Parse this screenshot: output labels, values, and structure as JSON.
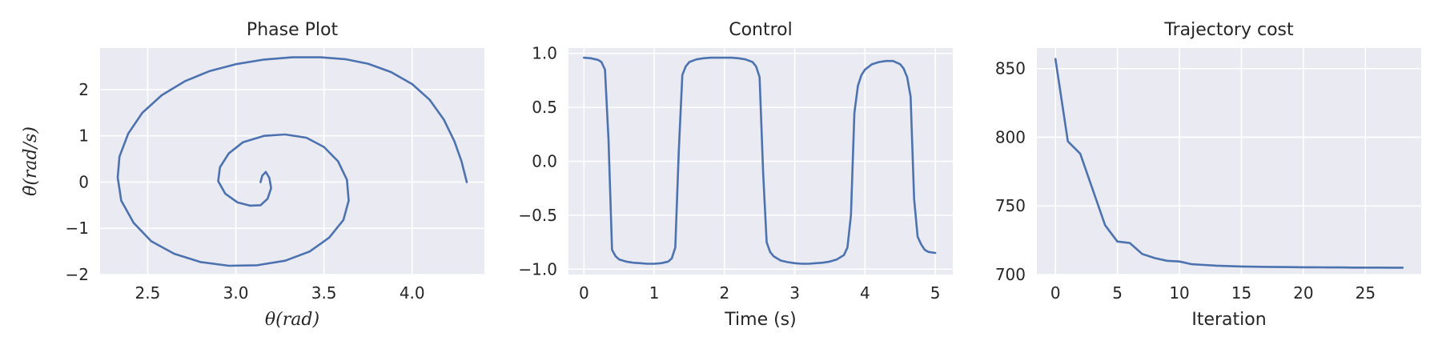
{
  "chart_data": [
    {
      "type": "line",
      "title": "Phase Plot",
      "xlabel": "θ(rad)",
      "ylabel": "θ̇(rad/s)",
      "xlim": [
        2.23,
        4.41
      ],
      "ylim": [
        -2.0,
        2.9
      ],
      "xticks": [
        2.5,
        3.0,
        3.5,
        4.0
      ],
      "xtick_labels": [
        "2.5",
        "3.0",
        "3.5",
        "4.0"
      ],
      "yticks": [
        -2,
        -1,
        0,
        1,
        2
      ],
      "ytick_labels": [
        "−2",
        "−1",
        "0",
        "1",
        "2"
      ],
      "grid": true,
      "series": [
        {
          "x": [
            4.31,
            4.28,
            4.24,
            4.18,
            4.1,
            4.0,
            3.88,
            3.75,
            3.62,
            3.48,
            3.32,
            3.16,
            3.0,
            2.85,
            2.71,
            2.58,
            2.47,
            2.39,
            2.34,
            2.33,
            2.35,
            2.42,
            2.52,
            2.65,
            2.8,
            2.96,
            3.12,
            3.28,
            3.42,
            3.53,
            3.61,
            3.64,
            3.63,
            3.58,
            3.5,
            3.4,
            3.28,
            3.16,
            3.04,
            2.96,
            2.91,
            2.9,
            2.94,
            3.01,
            3.08,
            3.14,
            3.18,
            3.2,
            3.19,
            3.17,
            3.15,
            3.14
          ],
          "y": [
            0.0,
            0.45,
            0.88,
            1.35,
            1.78,
            2.12,
            2.38,
            2.56,
            2.66,
            2.7,
            2.7,
            2.65,
            2.55,
            2.4,
            2.18,
            1.88,
            1.5,
            1.05,
            0.55,
            0.1,
            -0.4,
            -0.88,
            -1.28,
            -1.55,
            -1.73,
            -1.81,
            -1.8,
            -1.7,
            -1.5,
            -1.2,
            -0.82,
            -0.4,
            0.05,
            0.45,
            0.76,
            0.96,
            1.03,
            1.0,
            0.86,
            0.62,
            0.32,
            0.02,
            -0.25,
            -0.44,
            -0.51,
            -0.5,
            -0.36,
            -0.13,
            0.09,
            0.22,
            0.14,
            0.0
          ]
        }
      ]
    },
    {
      "type": "line",
      "title": "Control",
      "xlabel": "Time (s)",
      "ylabel": "",
      "xlim": [
        -0.22,
        5.25
      ],
      "ylim": [
        -1.05,
        1.05
      ],
      "xticks": [
        0,
        1,
        2,
        3,
        4,
        5
      ],
      "xtick_labels": [
        "0",
        "1",
        "2",
        "3",
        "4",
        "5"
      ],
      "yticks": [
        -1.0,
        -0.5,
        0.0,
        0.5,
        1.0
      ],
      "ytick_labels": [
        "−1.0",
        "−0.5",
        "0.0",
        "0.5",
        "1.0"
      ],
      "grid": true,
      "series": [
        {
          "x": [
            0.0,
            0.1,
            0.2,
            0.25,
            0.3,
            0.35,
            0.4,
            0.45,
            0.5,
            0.6,
            0.7,
            0.8,
            0.9,
            1.0,
            1.1,
            1.2,
            1.25,
            1.3,
            1.35,
            1.4,
            1.45,
            1.5,
            1.6,
            1.7,
            1.8,
            1.9,
            2.0,
            2.1,
            2.2,
            2.3,
            2.4,
            2.45,
            2.5,
            2.55,
            2.6,
            2.65,
            2.7,
            2.8,
            2.9,
            3.0,
            3.1,
            3.2,
            3.3,
            3.4,
            3.5,
            3.6,
            3.7,
            3.75,
            3.8,
            3.85,
            3.9,
            3.95,
            4.0,
            4.1,
            4.2,
            4.3,
            4.4,
            4.5,
            4.55,
            4.6,
            4.65,
            4.7,
            4.75,
            4.8,
            4.85,
            4.9,
            5.0
          ],
          "y": [
            0.96,
            0.955,
            0.94,
            0.92,
            0.85,
            0.2,
            -0.82,
            -0.88,
            -0.91,
            -0.93,
            -0.94,
            -0.945,
            -0.95,
            -0.95,
            -0.945,
            -0.93,
            -0.9,
            -0.8,
            0.1,
            0.8,
            0.88,
            0.92,
            0.945,
            0.955,
            0.96,
            0.96,
            0.96,
            0.96,
            0.955,
            0.945,
            0.92,
            0.88,
            0.78,
            -0.1,
            -0.75,
            -0.84,
            -0.88,
            -0.92,
            -0.935,
            -0.945,
            -0.95,
            -0.95,
            -0.945,
            -0.94,
            -0.93,
            -0.91,
            -0.87,
            -0.8,
            -0.5,
            0.45,
            0.7,
            0.8,
            0.85,
            0.9,
            0.92,
            0.93,
            0.93,
            0.9,
            0.86,
            0.78,
            0.6,
            -0.35,
            -0.7,
            -0.77,
            -0.82,
            -0.84,
            -0.85
          ]
        }
      ]
    },
    {
      "type": "line",
      "title": "Trajectory cost",
      "xlabel": "Iteration",
      "ylabel": "",
      "xlim": [
        -1.5,
        29.5
      ],
      "ylim": [
        700,
        865
      ],
      "xticks": [
        0,
        5,
        10,
        15,
        20,
        25
      ],
      "xtick_labels": [
        "0",
        "5",
        "10",
        "15",
        "20",
        "25"
      ],
      "yticks": [
        700,
        750,
        800,
        850
      ],
      "ytick_labels": [
        "700",
        "750",
        "800",
        "850"
      ],
      "grid": true,
      "series": [
        {
          "x": [
            0,
            1,
            2,
            3,
            4,
            5,
            6,
            7,
            8,
            9,
            10,
            11,
            12,
            13,
            14,
            15,
            16,
            17,
            18,
            19,
            20,
            21,
            22,
            23,
            24,
            25,
            26,
            27,
            28
          ],
          "y": [
            857,
            797,
            788,
            762,
            736,
            724,
            723,
            715,
            712,
            710,
            709.5,
            707.5,
            707,
            706.5,
            706.2,
            705.9,
            705.7,
            705.6,
            705.5,
            705.4,
            705.3,
            705.3,
            705.2,
            705.2,
            705.1,
            705.1,
            705.1,
            705.0,
            705.0
          ]
        }
      ]
    }
  ]
}
